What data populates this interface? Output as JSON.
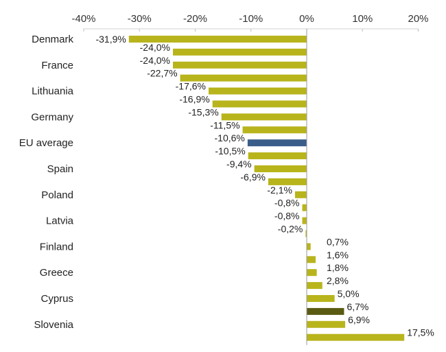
{
  "chart_data": {
    "type": "bar",
    "orientation": "horizontal",
    "title": "",
    "xlabel": "",
    "ylabel": "",
    "xlim": [
      -40,
      20
    ],
    "x_ticks": [
      -40,
      -30,
      -20,
      -10,
      0,
      10,
      20
    ],
    "x_tick_labels": [
      "-40%",
      "-30%",
      "-20%",
      "-10%",
      "0%",
      "10%",
      "20%"
    ],
    "grid": false,
    "legend": "none",
    "categories": [
      "Denmark",
      "",
      "France",
      "",
      "Lithuania",
      "",
      "Germany",
      "",
      "EU average",
      "",
      "Spain",
      "",
      "Poland",
      "",
      "Latvia",
      "",
      "Finland",
      "",
      "Greece",
      "",
      "Cyprus",
      "",
      "Slovenia",
      ""
    ],
    "values": [
      -31.9,
      -24.0,
      -24.0,
      -22.7,
      -17.6,
      -16.9,
      -15.3,
      -11.5,
      -10.6,
      -10.5,
      -9.4,
      -6.9,
      -2.1,
      -0.8,
      -0.8,
      -0.2,
      0.7,
      1.6,
      1.8,
      2.8,
      5.0,
      6.7,
      6.9,
      17.5
    ],
    "value_labels": [
      "-31,9%",
      "-24,0%",
      "-24,0%",
      "-22,7%",
      "-17,6%",
      "-16,9%",
      "-15,3%",
      "-11,5%",
      "-10,6%",
      "-10,5%",
      "-9,4%",
      "-6,9%",
      "-2,1%",
      "-0,8%",
      "-0,8%",
      "-0,2%",
      "0,7%",
      "1,6%",
      "1,8%",
      "2,8%",
      "5,0%",
      "6,7%",
      "6,9%",
      "17,5%"
    ],
    "bar_colors": [
      "#b8b41c",
      "#b8b41c",
      "#b8b41c",
      "#b8b41c",
      "#b8b41c",
      "#b8b41c",
      "#b8b41c",
      "#b8b41c",
      "#3b5d89",
      "#b8b41c",
      "#b8b41c",
      "#b8b41c",
      "#b8b41c",
      "#b8b41c",
      "#b8b41c",
      "#b8b41c",
      "#b8b41c",
      "#b8b41c",
      "#b8b41c",
      "#b8b41c",
      "#b8b41c",
      "#5a5a12",
      "#b8b41c",
      "#b8b41c"
    ],
    "colors": {
      "default": "#b8b41c",
      "eu_average": "#3b5d89",
      "highlight": "#5a5a12"
    }
  }
}
